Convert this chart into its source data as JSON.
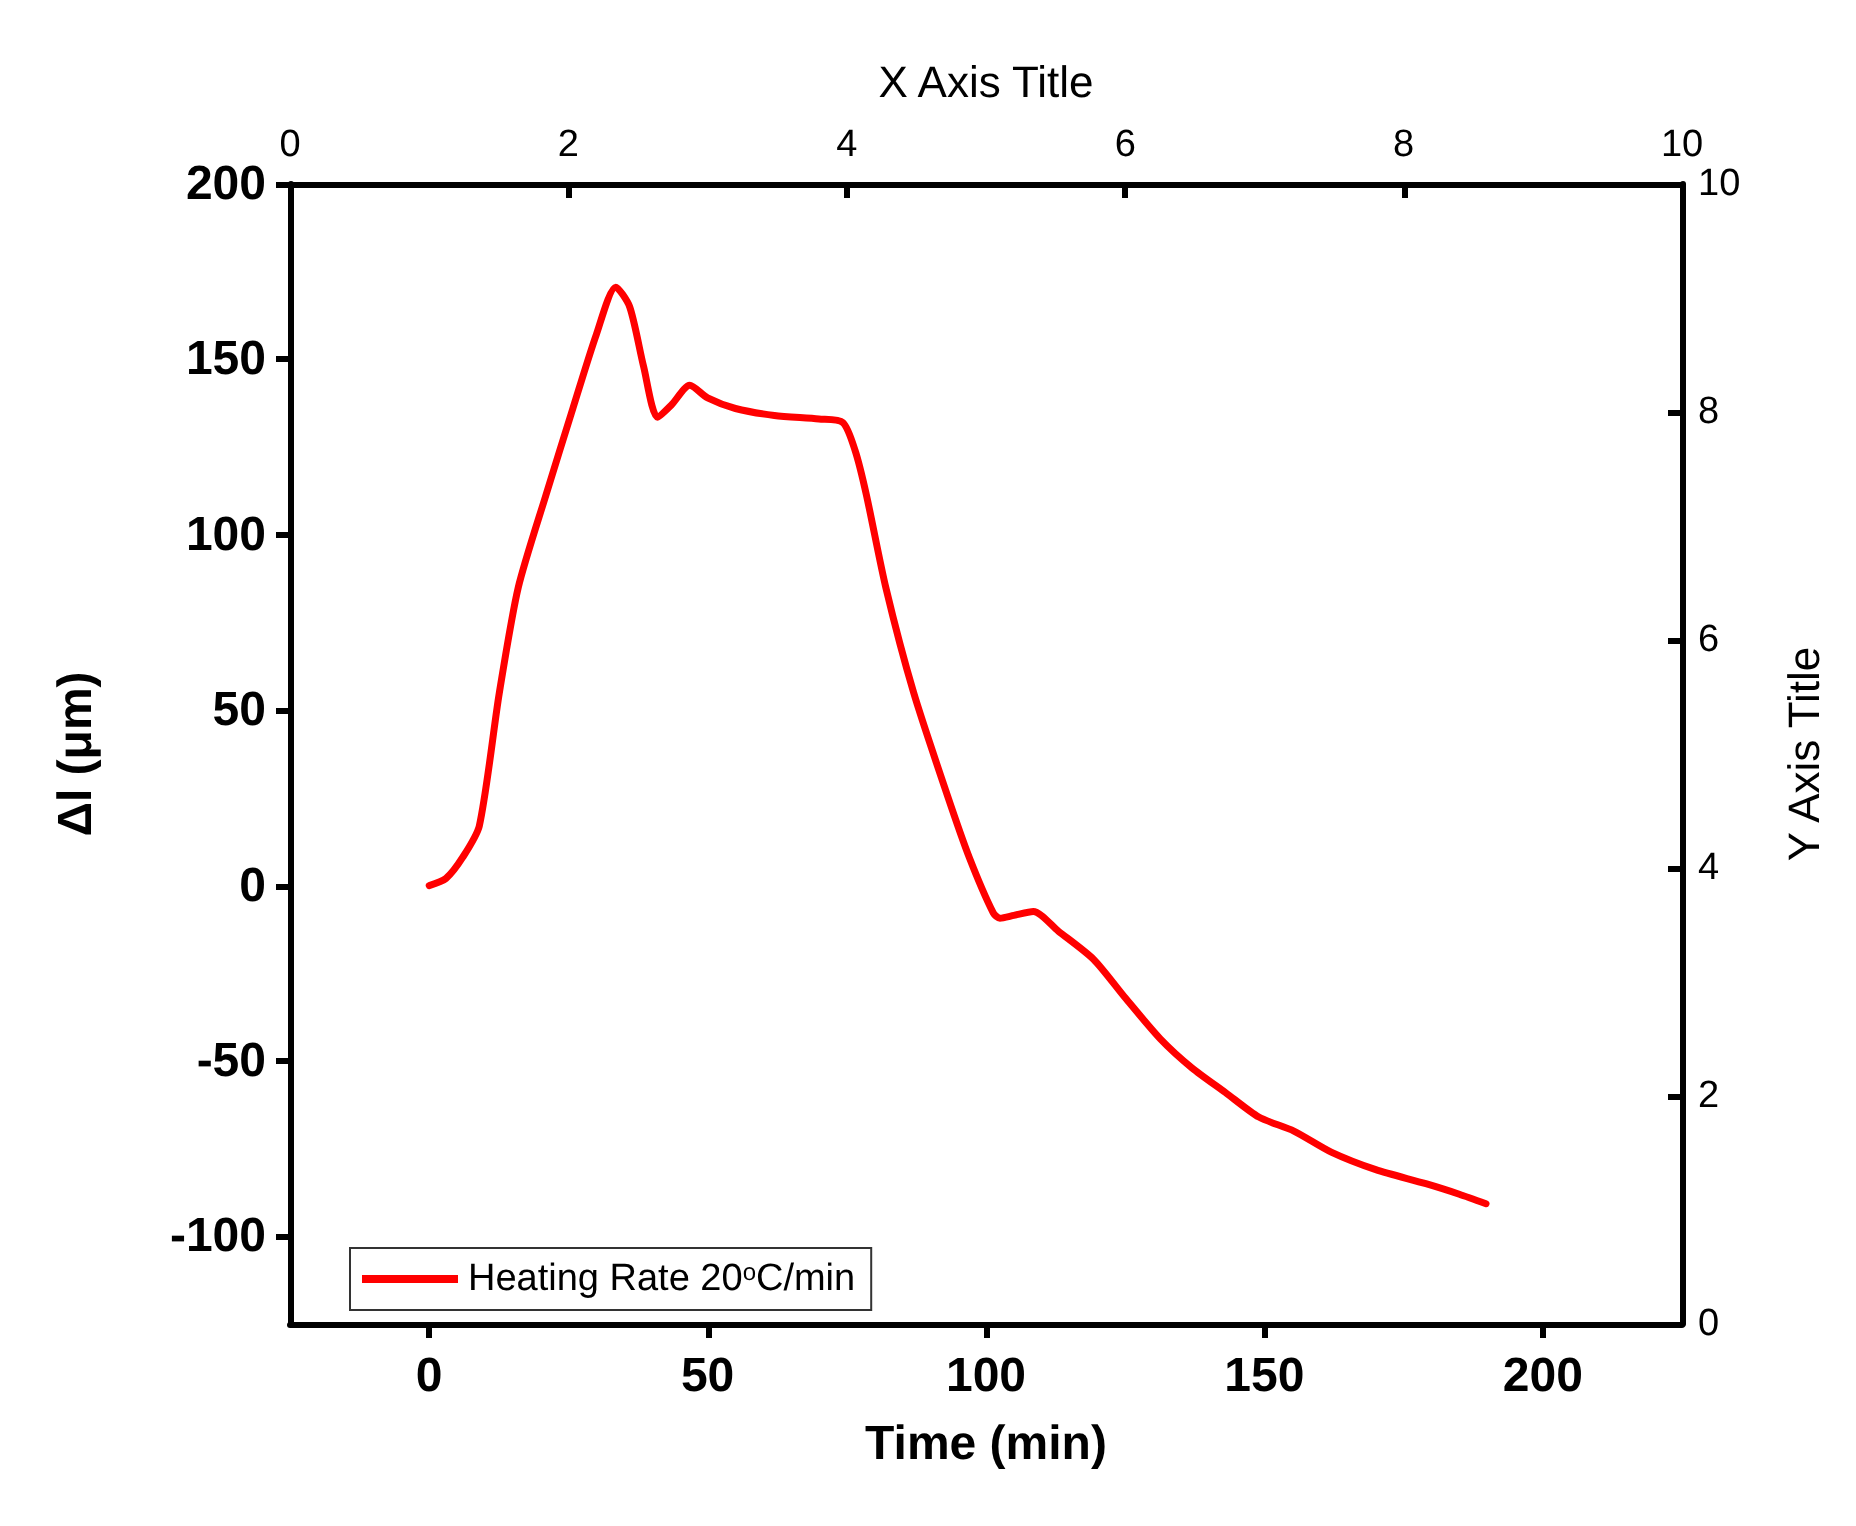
{
  "chart_data": {
    "type": "line",
    "xlabel": "Time (min)",
    "ylabel": "Δl (μm)",
    "x2label": "X Axis Title",
    "y2label": "Y Axis Title",
    "x": [
      0,
      3,
      6,
      9,
      12.6,
      16,
      21,
      25.8,
      30,
      33.5,
      36,
      38.5,
      41,
      43.5,
      46.8,
      50,
      55,
      62,
      70,
      74.3,
      76.5,
      78.5,
      82,
      87,
      93,
      97,
      101.3,
      102.5,
      105,
      108.5,
      113,
      119.3,
      125,
      131.3,
      137,
      143,
      149,
      155.3,
      162,
      170,
      179,
      185,
      189.8
    ],
    "series": [
      {
        "name": "Heating Rate 20$^{o}$C/min",
        "color": "#ff0000",
        "values": [
          0,
          2,
          8,
          17,
          55,
          85,
          111.5,
          136,
          157,
          170.6,
          165,
          148,
          133.5,
          137,
          142.6,
          139,
          136,
          134,
          133,
          132,
          124,
          111.5,
          85,
          55,
          26,
          8,
          -7.8,
          -9.3,
          -8.5,
          -7.4,
          -13,
          -21,
          -32,
          -43.7,
          -52,
          -59,
          -66,
          -70,
          -76,
          -81,
          -85,
          -88,
          -90.7
        ]
      }
    ],
    "xlim": [
      -25,
      225
    ],
    "xticks": [
      0,
      50,
      100,
      150,
      200
    ],
    "ylim": [
      -125,
      200
    ],
    "yticks": [
      -100,
      -50,
      0,
      50,
      100,
      150,
      200
    ],
    "x2lim": [
      0,
      10
    ],
    "x2ticks": [
      0,
      2,
      4,
      6,
      8,
      10
    ],
    "y2lim": [
      0,
      10
    ],
    "y2ticks": [
      0,
      2,
      4,
      6,
      8,
      10
    ],
    "legend": "bottom left",
    "grid": false,
    "marker": "none",
    "line_style": "solid"
  }
}
